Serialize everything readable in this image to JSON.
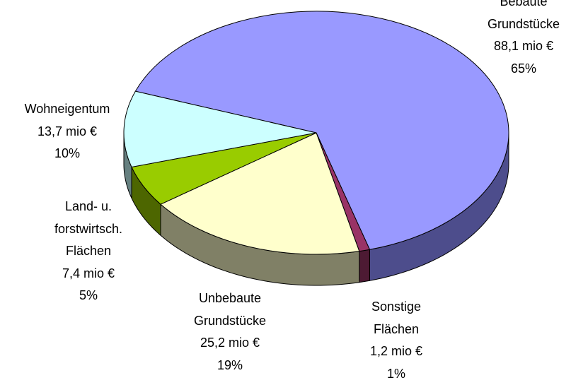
{
  "chart_data": {
    "type": "pie3d",
    "categories": [
      "Bebaute\nGrundstücke",
      "Sonstige\nFlächen",
      "Unbebaute\nGrundstücke",
      "Land- u.\nforstwirtsch.\nFlächen",
      "Wohneigentum"
    ],
    "values": [
      88.1,
      1.2,
      25.2,
      7.4,
      13.7
    ],
    "value_labels": [
      "88,1 mio €",
      "1,2 mio €",
      "25,2 mio €",
      "7,4 mio €",
      "13,7 mio €"
    ],
    "percentages": [
      65,
      1,
      19,
      5,
      10
    ],
    "percent_labels": [
      "65%",
      "1%",
      "19%",
      "5%",
      "10%"
    ],
    "colors": [
      "#9999ff",
      "#993366",
      "#ffffcc",
      "#99cc00",
      "#ccffff"
    ],
    "side_colors": [
      "#4d4d8c",
      "#4d1a33",
      "#808066",
      "#4d6600",
      "#668080"
    ]
  }
}
